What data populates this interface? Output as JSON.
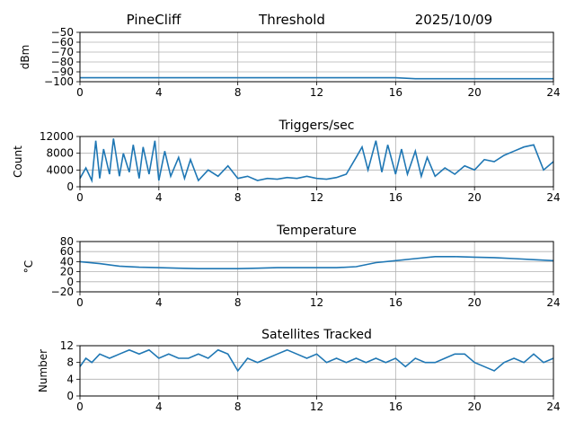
{
  "header": {
    "station": "PineCliff",
    "title": "Threshold",
    "date": "2025/10/09"
  },
  "chart_data": [
    {
      "type": "line",
      "title": "Threshold",
      "xlabel": "",
      "ylabel": "dBm",
      "xlim": [
        0,
        24
      ],
      "ylim": [
        -100,
        -50
      ],
      "xticks": [
        0,
        4,
        8,
        12,
        16,
        20,
        24
      ],
      "yticks": [
        -100,
        -90,
        -80,
        -70,
        -60,
        -50
      ],
      "grid": true,
      "color": "#1f77b4",
      "x": [
        0,
        1,
        2,
        3,
        4,
        5,
        6,
        7,
        8,
        9,
        10,
        11,
        12,
        13,
        14,
        15,
        16,
        17,
        18,
        19,
        20,
        21,
        22,
        23,
        24
      ],
      "y": [
        -96,
        -96,
        -96,
        -96,
        -96,
        -96,
        -96,
        -96,
        -96,
        -96,
        -96,
        -96,
        -96,
        -96,
        -96,
        -96,
        -96,
        -97,
        -97,
        -97,
        -97,
        -97,
        -97,
        -97,
        -97
      ]
    },
    {
      "type": "line",
      "title": "Triggers/sec",
      "xlabel": "",
      "ylabel": "Count",
      "xlim": [
        0,
        24
      ],
      "ylim": [
        0,
        12000
      ],
      "xticks": [
        0,
        4,
        8,
        12,
        16,
        20,
        24
      ],
      "yticks": [
        0,
        4000,
        8000,
        12000
      ],
      "grid": true,
      "color": "#1f77b4",
      "x": [
        0,
        0.3,
        0.6,
        0.8,
        1.0,
        1.2,
        1.5,
        1.7,
        2.0,
        2.2,
        2.5,
        2.7,
        3.0,
        3.2,
        3.5,
        3.8,
        4.0,
        4.3,
        4.6,
        5.0,
        5.3,
        5.6,
        6.0,
        6.5,
        7.0,
        7.5,
        8.0,
        8.5,
        9.0,
        9.5,
        10.0,
        10.5,
        11.0,
        11.5,
        12.0,
        12.5,
        13.0,
        13.5,
        14.0,
        14.3,
        14.6,
        15.0,
        15.3,
        15.6,
        16.0,
        16.3,
        16.6,
        17.0,
        17.3,
        17.6,
        18.0,
        18.5,
        19.0,
        19.5,
        20.0,
        20.5,
        21.0,
        21.5,
        22.0,
        22.5,
        23.0,
        23.5,
        24.0
      ],
      "y": [
        2000,
        4500,
        1500,
        11000,
        2000,
        9000,
        3000,
        11500,
        2500,
        8000,
        3500,
        10000,
        2000,
        9500,
        3000,
        11000,
        1500,
        8500,
        2500,
        7000,
        2000,
        6500,
        1500,
        4000,
        2500,
        5000,
        2000,
        2500,
        1500,
        2000,
        1800,
        2200,
        2000,
        2500,
        2000,
        1800,
        2200,
        3000,
        7000,
        9500,
        4000,
        11000,
        3500,
        10000,
        3000,
        9000,
        3000,
        8500,
        2500,
        7000,
        2500,
        4500,
        3000,
        5000,
        4000,
        6500,
        6000,
        7500,
        8500,
        9500,
        10000,
        4000,
        6000
      ]
    },
    {
      "type": "line",
      "title": "Temperature",
      "xlabel": "",
      "ylabel": "°C",
      "xlim": [
        0,
        24
      ],
      "ylim": [
        -20,
        80
      ],
      "xticks": [
        0,
        4,
        8,
        12,
        16,
        20,
        24
      ],
      "yticks": [
        -20,
        0,
        20,
        40,
        60,
        80
      ],
      "grid": true,
      "color": "#1f77b4",
      "x": [
        0,
        1,
        2,
        3,
        4,
        5,
        6,
        7,
        8,
        9,
        10,
        11,
        12,
        13,
        14,
        15,
        16,
        17,
        18,
        19,
        20,
        21,
        22,
        23,
        24
      ],
      "y": [
        40,
        36,
        31,
        29,
        28,
        27,
        26,
        26,
        26,
        27,
        28,
        28,
        28,
        28,
        30,
        38,
        42,
        46,
        50,
        50,
        49,
        48,
        46,
        44,
        42
      ]
    },
    {
      "type": "line",
      "title": "Satellites Tracked",
      "xlabel": "",
      "ylabel": "Number",
      "xlim": [
        0,
        24
      ],
      "ylim": [
        0,
        12
      ],
      "xticks": [
        0,
        4,
        8,
        12,
        16,
        20,
        24
      ],
      "yticks": [
        0,
        4,
        8,
        12
      ],
      "grid": true,
      "color": "#1f77b4",
      "x": [
        0,
        0.3,
        0.6,
        1.0,
        1.5,
        2.0,
        2.5,
        3.0,
        3.5,
        4.0,
        4.5,
        5.0,
        5.5,
        6.0,
        6.5,
        7.0,
        7.5,
        8.0,
        8.5,
        9.0,
        9.5,
        10.0,
        10.5,
        11.0,
        11.5,
        12.0,
        12.5,
        13.0,
        13.5,
        14.0,
        14.5,
        15.0,
        15.5,
        16.0,
        16.5,
        17.0,
        17.5,
        18.0,
        18.5,
        19.0,
        19.5,
        20.0,
        20.5,
        21.0,
        21.5,
        22.0,
        22.5,
        23.0,
        23.5,
        24.0
      ],
      "y": [
        7,
        9,
        8,
        10,
        9,
        10,
        11,
        10,
        11,
        9,
        10,
        9,
        9,
        10,
        9,
        11,
        10,
        6,
        9,
        8,
        9,
        10,
        11,
        10,
        9,
        10,
        8,
        9,
        8,
        9,
        8,
        9,
        8,
        9,
        7,
        9,
        8,
        8,
        9,
        10,
        10,
        8,
        7,
        6,
        8,
        9,
        8,
        10,
        8,
        9
      ]
    }
  ]
}
